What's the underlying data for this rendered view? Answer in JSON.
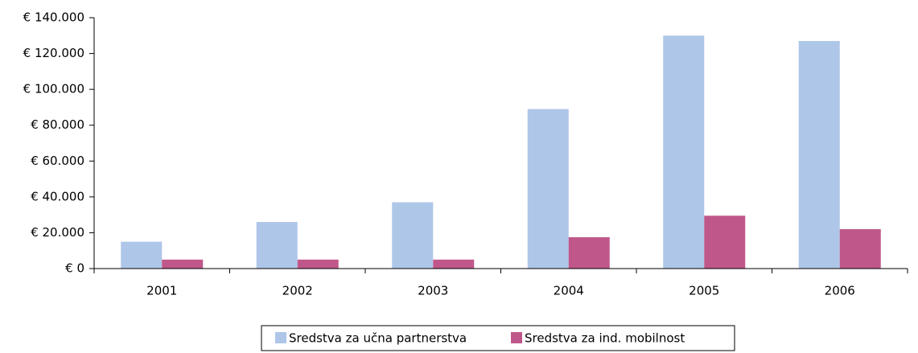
{
  "chart_data": {
    "type": "bar",
    "categories": [
      "2001",
      "2002",
      "2003",
      "2004",
      "2005",
      "2006"
    ],
    "series": [
      {
        "name": "Sredstva za učna partnerstva",
        "color": "#aec6e8",
        "values": [
          15000,
          26000,
          37000,
          89000,
          130000,
          127000
        ]
      },
      {
        "name": "Sredstva za ind. mobilnost",
        "color": "#c0578a",
        "values": [
          5000,
          5000,
          5000,
          17500,
          29500,
          22000
        ]
      }
    ],
    "ylim": [
      0,
      140000
    ],
    "yticks": [
      {
        "value": 0,
        "label": "€ 0"
      },
      {
        "value": 20000,
        "label": "€ 20.000"
      },
      {
        "value": 40000,
        "label": "€ 40.000"
      },
      {
        "value": 60000,
        "label": "€ 60.000"
      },
      {
        "value": 80000,
        "label": "€ 80.000"
      },
      {
        "value": 100000,
        "label": "€ 100.000"
      },
      {
        "value": 120000,
        "label": "€ 120.000"
      },
      {
        "value": 140000,
        "label": "€ 140.000"
      }
    ],
    "grid": false,
    "legend": "bottom"
  }
}
